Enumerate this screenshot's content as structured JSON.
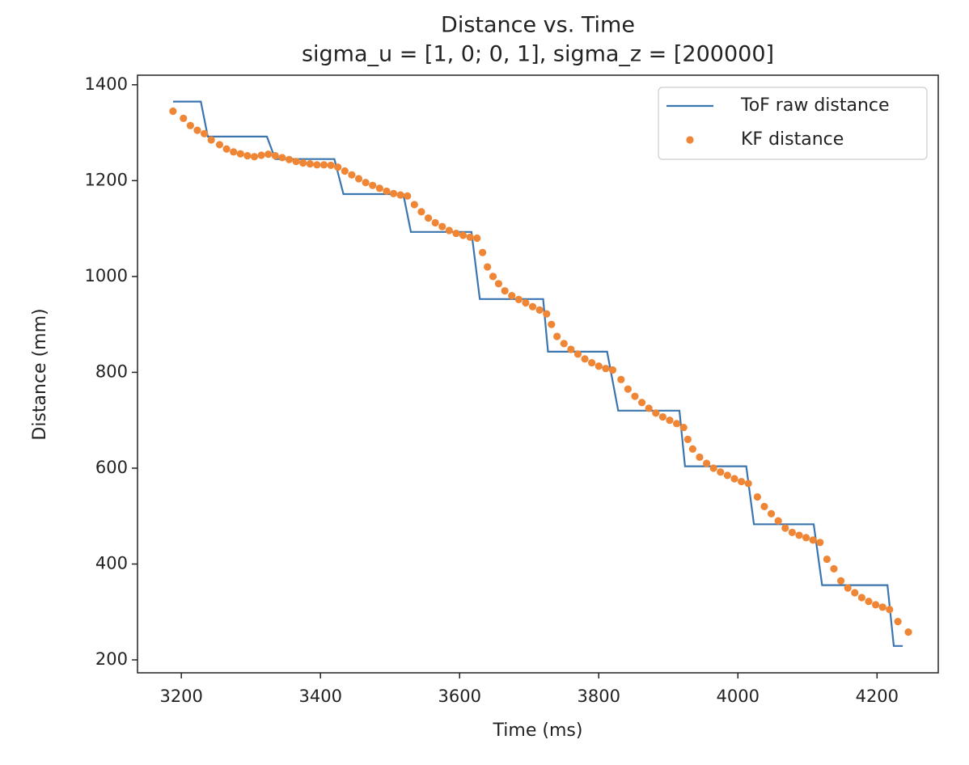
{
  "chart_data": {
    "type": "line",
    "title": "Distance vs. Time",
    "subtitle": "sigma_u = [1, 0; 0, 1], sigma_z = [200000]",
    "x_label": "Time (ms)",
    "y_label": "Distance (mm)",
    "xlim": [
      3137,
      4288
    ],
    "ylim": [
      173,
      1420
    ],
    "xticks": [
      3200,
      3400,
      3600,
      3800,
      4000,
      4200
    ],
    "yticks": [
      200,
      400,
      600,
      800,
      1000,
      1200,
      1400
    ],
    "legend": "upper right",
    "series": [
      {
        "name": "ToF raw distance",
        "type": "line",
        "color": "#3b75af",
        "x": [
          3188,
          3228,
          3238,
          3323,
          3335,
          3420,
          3433,
          3519,
          3530,
          3617,
          3629,
          3720,
          3727,
          3812,
          3828,
          3916,
          3924,
          4012,
          4023,
          4109,
          4121,
          4215,
          4224,
          4237
        ],
        "values": [
          1365,
          1365,
          1292,
          1292,
          1245,
          1245,
          1172,
          1172,
          1093,
          1093,
          953,
          953,
          843,
          843,
          720,
          720,
          604,
          604,
          483,
          483,
          356,
          356,
          229,
          229
        ]
      },
      {
        "name": "KF distance",
        "type": "scatter",
        "color": "#ef8636",
        "x": [
          3188,
          3203,
          3213,
          3223,
          3233,
          3243,
          3255,
          3265,
          3275,
          3285,
          3295,
          3305,
          3315,
          3325,
          3335,
          3345,
          3355,
          3365,
          3375,
          3385,
          3395,
          3405,
          3415,
          3425,
          3435,
          3445,
          3455,
          3465,
          3475,
          3485,
          3495,
          3505,
          3515,
          3525,
          3535,
          3545,
          3555,
          3565,
          3575,
          3585,
          3595,
          3605,
          3615,
          3625,
          3633,
          3640,
          3648,
          3656,
          3665,
          3675,
          3685,
          3695,
          3705,
          3715,
          3725,
          3732,
          3740,
          3750,
          3760,
          3770,
          3780,
          3790,
          3800,
          3810,
          3820,
          3832,
          3842,
          3852,
          3862,
          3872,
          3882,
          3892,
          3902,
          3912,
          3922,
          3928,
          3935,
          3945,
          3955,
          3965,
          3975,
          3985,
          3995,
          4005,
          4015,
          4028,
          4038,
          4048,
          4058,
          4068,
          4078,
          4088,
          4098,
          4108,
          4118,
          4128,
          4138,
          4148,
          4158,
          4168,
          4178,
          4188,
          4198,
          4208,
          4218,
          4230,
          4245
        ],
        "values": [
          1345,
          1330,
          1315,
          1305,
          1298,
          1285,
          1275,
          1266,
          1260,
          1256,
          1252,
          1250,
          1253,
          1255,
          1252,
          1248,
          1244,
          1240,
          1237,
          1235,
          1233,
          1233,
          1232,
          1228,
          1220,
          1212,
          1204,
          1196,
          1190,
          1184,
          1178,
          1173,
          1170,
          1168,
          1150,
          1135,
          1122,
          1112,
          1104,
          1096,
          1090,
          1086,
          1082,
          1080,
          1050,
          1020,
          1000,
          985,
          970,
          960,
          952,
          945,
          937,
          930,
          922,
          900,
          875,
          860,
          848,
          838,
          828,
          820,
          813,
          808,
          805,
          785,
          765,
          750,
          737,
          725,
          715,
          707,
          700,
          693,
          685,
          660,
          640,
          623,
          610,
          600,
          592,
          585,
          578,
          572,
          568,
          540,
          520,
          505,
          490,
          475,
          466,
          460,
          455,
          450,
          445,
          410,
          390,
          365,
          350,
          340,
          330,
          322,
          315,
          310,
          305,
          280,
          258
        ]
      }
    ]
  }
}
